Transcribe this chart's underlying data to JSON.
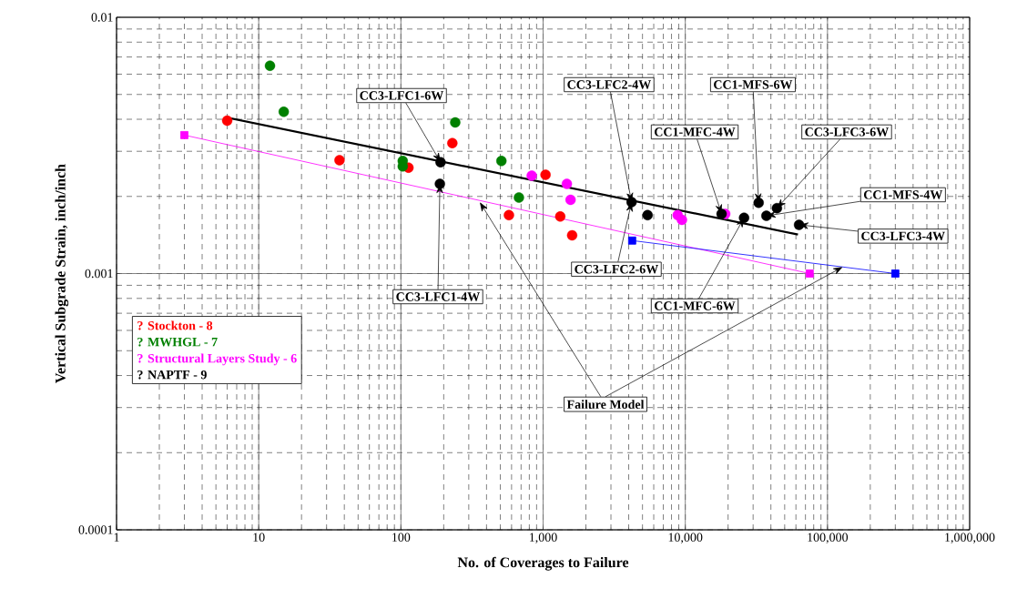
{
  "chart_data": {
    "type": "scatter",
    "log": "xy",
    "grid": true,
    "marker": "circle",
    "legend": "left",
    "xlabel": "No. of Coverages to Failure",
    "ylabel": "Vertical Subgrade Strain, inch/inch",
    "xlim": [
      1,
      1000000
    ],
    "ylim": [
      0.0001,
      0.01
    ],
    "xticks": [
      1,
      10,
      100,
      {
        "value": 1000,
        "label": "1,000"
      },
      {
        "value": 10000,
        "label": "10,000"
      },
      {
        "value": 100000,
        "label": "100,000"
      },
      {
        "value": 1000000,
        "label": "1,000,000"
      }
    ],
    "yticks": [
      0.0001,
      0.001,
      0.01
    ],
    "series": [
      {
        "name": "? Stockton - 8",
        "color": "#ff0000",
        "x": [
          6,
          37,
          113,
          230,
          1040,
          575,
          1320,
          1600
        ],
        "values": [
          0.00395,
          0.00277,
          0.00259,
          0.00323,
          0.00243,
          0.00169,
          0.00167,
          0.00141
        ]
      },
      {
        "name": "? MWHGL - 7",
        "color": "#008000",
        "x": [
          12,
          15,
          103,
          103,
          241,
          509,
          676
        ],
        "values": [
          0.00647,
          0.00428,
          0.00275,
          0.00262,
          0.00389,
          0.00275,
          0.00198
        ]
      },
      {
        "name": "? Structural Layers Study - 6",
        "color": "#ff00ff",
        "x": [
          832,
          1470,
          1560,
          8840,
          9470,
          19100
        ],
        "values": [
          0.00241,
          0.00224,
          0.00194,
          0.00169,
          0.00162,
          0.00171
        ]
      },
      {
        "name": "? NAPTF - 9",
        "color": "#000000",
        "x": [
          190,
          188,
          4190,
          5430,
          18000,
          25900,
          32800,
          37200,
          44100,
          63100
        ],
        "values": [
          0.00272,
          0.00224,
          0.0019,
          0.00169,
          0.00171,
          0.00165,
          0.00189,
          0.00168,
          0.0018,
          0.00155
        ]
      },
      {
        "type": "line",
        "marker": "none",
        "color": "#000000",
        "x": [
          6,
          62000
        ],
        "values": [
          0.00406,
          0.00142
        ]
      },
      {
        "type": "line",
        "marker": "square",
        "color": "#ff00ff",
        "x": [
          3,
          75000
        ],
        "values": [
          0.00347,
          0.001
        ]
      },
      {
        "type": "line",
        "marker": "square",
        "color": "#0000ff",
        "x": [
          4230,
          300000
        ],
        "values": [
          0.001345,
          0.001
        ]
      }
    ],
    "annotations": [
      {
        "text": "CC3-LFC1-6W",
        "x": 190,
        "y": 0.00272
      },
      {
        "text": "CC3-LFC2-4W",
        "x": 4190,
        "y": 0.0019
      },
      {
        "text": "CC1-MFS-6W",
        "x": 32800,
        "y": 0.00189
      },
      {
        "text": "CC1-MFC-4W",
        "x": 18000,
        "y": 0.00171
      },
      {
        "text": "CC3-LFC3-6W",
        "x": 44100,
        "y": 0.0018
      },
      {
        "text": "CC1-MFS-4W",
        "x": 37200,
        "y": 0.00168
      },
      {
        "text": "CC3-LFC3-4W",
        "x": 63100,
        "y": 0.00155
      },
      {
        "text": "CC3-LFC2-6W",
        "x": 4190,
        "y": 0.0019
      },
      {
        "text": "CC1-MFC-6W",
        "x": 25900,
        "y": 0.00165
      },
      {
        "text": "CC3-LFC1-4W",
        "x": 188,
        "y": 0.00224
      },
      {
        "text": "Failure Model",
        "x": 359,
        "y": 0.0019
      }
    ]
  }
}
